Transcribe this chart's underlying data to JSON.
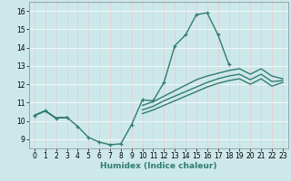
{
  "xlabel": "Humidex (Indice chaleur)",
  "bg_color": "#cde8ea",
  "grid_color": "#f0f0f0",
  "line_color": "#2e7d6e",
  "xlim": [
    -0.5,
    23.5
  ],
  "ylim": [
    8.5,
    16.5
  ],
  "xticks": [
    0,
    1,
    2,
    3,
    4,
    5,
    6,
    7,
    8,
    9,
    10,
    11,
    12,
    13,
    14,
    15,
    16,
    17,
    18,
    19,
    20,
    21,
    22,
    23
  ],
  "yticks": [
    9,
    10,
    11,
    12,
    13,
    14,
    15,
    16
  ],
  "curve1_x": [
    0,
    1,
    2,
    3,
    4,
    5,
    6,
    7,
    8,
    9,
    10,
    11,
    12,
    13,
    14,
    15,
    16,
    17,
    18,
    19,
    20,
    21,
    22,
    23
  ],
  "curve1_y": [
    10.3,
    10.55,
    10.15,
    10.2,
    9.7,
    9.1,
    8.85,
    8.7,
    8.75,
    9.8,
    11.15,
    11.1,
    12.1,
    14.1,
    14.7,
    15.8,
    15.9,
    14.7,
    13.1,
    null,
    null,
    null,
    null,
    null
  ],
  "curve2_x": [
    0,
    1,
    2,
    3,
    4,
    5,
    6,
    7,
    8,
    9,
    10,
    11,
    12,
    13,
    14,
    15,
    16,
    17,
    18,
    19,
    20,
    21,
    22,
    23
  ],
  "curve2_y": [
    10.3,
    10.55,
    10.15,
    10.2,
    null,
    null,
    null,
    null,
    null,
    null,
    10.85,
    11.05,
    11.35,
    11.65,
    11.95,
    12.25,
    12.45,
    12.6,
    12.75,
    12.85,
    12.55,
    12.85,
    12.45,
    12.3
  ],
  "curve3_x": [
    0,
    1,
    2,
    3,
    4,
    5,
    6,
    7,
    8,
    9,
    10,
    11,
    12,
    13,
    14,
    15,
    16,
    17,
    18,
    19,
    20,
    21,
    22,
    23
  ],
  "curve3_y": [
    10.3,
    10.55,
    10.15,
    10.2,
    null,
    null,
    null,
    null,
    null,
    null,
    10.6,
    10.8,
    11.1,
    11.35,
    11.6,
    11.85,
    12.1,
    12.3,
    12.45,
    12.55,
    12.25,
    12.55,
    12.15,
    12.2
  ],
  "curve4_x": [
    0,
    1,
    2,
    3,
    4,
    5,
    6,
    7,
    8,
    9,
    10,
    11,
    12,
    13,
    14,
    15,
    16,
    17,
    18,
    19,
    20,
    21,
    22,
    23
  ],
  "curve4_y": [
    10.3,
    10.55,
    10.15,
    10.2,
    null,
    null,
    null,
    null,
    null,
    null,
    10.4,
    10.6,
    10.85,
    11.1,
    11.35,
    11.6,
    11.85,
    12.05,
    12.2,
    12.3,
    12.0,
    12.3,
    11.9,
    12.1
  ]
}
